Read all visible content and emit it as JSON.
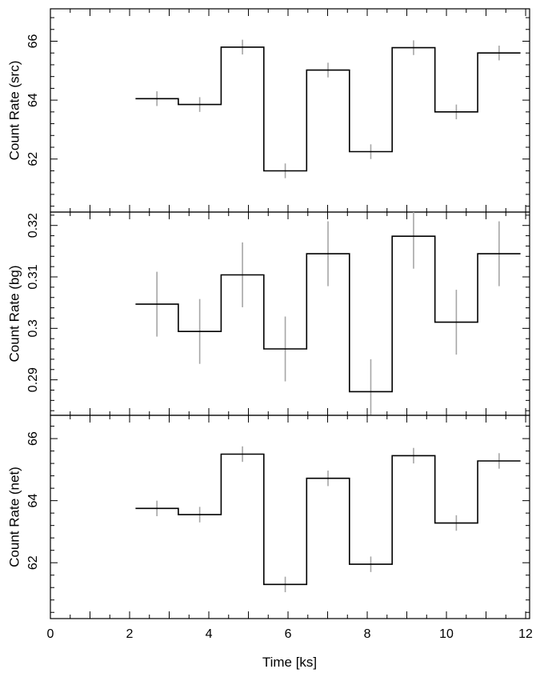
{
  "chart_data": [
    {
      "type": "line",
      "panel": "src",
      "ylabel": "Count Rate (src)",
      "ylim": [
        60.2,
        67.1
      ],
      "yticks": [
        "62",
        "64",
        "66"
      ],
      "bins": [
        {
          "x_start": 2.15,
          "x_end": 3.23,
          "x": 2.69,
          "y": 64.05,
          "err": 0.25
        },
        {
          "x_start": 3.23,
          "x_end": 4.31,
          "x": 3.77,
          "y": 63.85,
          "err": 0.25
        },
        {
          "x_start": 4.31,
          "x_end": 5.39,
          "x": 4.85,
          "y": 65.8,
          "err": 0.25
        },
        {
          "x_start": 5.39,
          "x_end": 6.47,
          "x": 5.93,
          "y": 61.6,
          "err": 0.25
        },
        {
          "x_start": 6.47,
          "x_end": 7.55,
          "x": 7.01,
          "y": 65.02,
          "err": 0.25
        },
        {
          "x_start": 7.55,
          "x_end": 8.63,
          "x": 8.09,
          "y": 62.25,
          "err": 0.25
        },
        {
          "x_start": 8.63,
          "x_end": 9.71,
          "x": 9.17,
          "y": 65.78,
          "err": 0.25
        },
        {
          "x_start": 9.71,
          "x_end": 10.79,
          "x": 10.25,
          "y": 63.6,
          "err": 0.25
        },
        {
          "x_start": 10.79,
          "x_end": 11.87,
          "x": 11.33,
          "y": 65.6,
          "err": 0.25
        }
      ]
    },
    {
      "type": "line",
      "panel": "bg",
      "ylabel": "Count Rate (bg)",
      "ylim": [
        0.2831,
        0.3226
      ],
      "yticks": [
        "0.29",
        "0.3",
        "0.31",
        "0.32"
      ],
      "bins": [
        {
          "x_start": 2.15,
          "x_end": 3.23,
          "x": 2.69,
          "y": 0.3047,
          "err": 0.0063
        },
        {
          "x_start": 3.23,
          "x_end": 4.31,
          "x": 3.77,
          "y": 0.2994,
          "err": 0.0063
        },
        {
          "x_start": 4.31,
          "x_end": 5.39,
          "x": 4.85,
          "y": 0.3104,
          "err": 0.0063
        },
        {
          "x_start": 5.39,
          "x_end": 6.47,
          "x": 5.93,
          "y": 0.296,
          "err": 0.0063
        },
        {
          "x_start": 6.47,
          "x_end": 7.55,
          "x": 7.01,
          "y": 0.3145,
          "err": 0.0063
        },
        {
          "x_start": 7.55,
          "x_end": 8.63,
          "x": 8.09,
          "y": 0.2877,
          "err": 0.0063
        },
        {
          "x_start": 8.63,
          "x_end": 9.71,
          "x": 9.17,
          "y": 0.3179,
          "err": 0.0063
        },
        {
          "x_start": 9.71,
          "x_end": 10.79,
          "x": 10.25,
          "y": 0.3012,
          "err": 0.0063
        },
        {
          "x_start": 10.79,
          "x_end": 11.87,
          "x": 11.33,
          "y": 0.3145,
          "err": 0.0063
        }
      ]
    },
    {
      "type": "line",
      "panel": "net",
      "ylabel": "Count Rate (net)",
      "xlabel": "Time [ks]",
      "ylim": [
        60.2,
        66.75
      ],
      "xlim": [
        0,
        12.1
      ],
      "yticks": [
        "62",
        "64",
        "66"
      ],
      "xticks": [
        "0",
        "2",
        "4",
        "6",
        "8",
        "10",
        "12"
      ],
      "bins": [
        {
          "x_start": 2.15,
          "x_end": 3.23,
          "x": 2.69,
          "y": 63.75,
          "err": 0.25
        },
        {
          "x_start": 3.23,
          "x_end": 4.31,
          "x": 3.77,
          "y": 63.55,
          "err": 0.25
        },
        {
          "x_start": 4.31,
          "x_end": 5.39,
          "x": 4.85,
          "y": 65.5,
          "err": 0.25
        },
        {
          "x_start": 5.39,
          "x_end": 6.47,
          "x": 5.93,
          "y": 61.3,
          "err": 0.25
        },
        {
          "x_start": 6.47,
          "x_end": 7.55,
          "x": 7.01,
          "y": 64.72,
          "err": 0.25
        },
        {
          "x_start": 7.55,
          "x_end": 8.63,
          "x": 8.09,
          "y": 61.95,
          "err": 0.25
        },
        {
          "x_start": 8.63,
          "x_end": 9.71,
          "x": 9.17,
          "y": 65.45,
          "err": 0.25
        },
        {
          "x_start": 9.71,
          "x_end": 10.79,
          "x": 10.25,
          "y": 63.28,
          "err": 0.25
        },
        {
          "x_start": 10.79,
          "x_end": 11.87,
          "x": 11.33,
          "y": 65.28,
          "err": 0.25
        }
      ]
    }
  ],
  "colors": {
    "step_line": "#000000",
    "error_bar": "#a6a6a6",
    "frame": "#000000"
  }
}
